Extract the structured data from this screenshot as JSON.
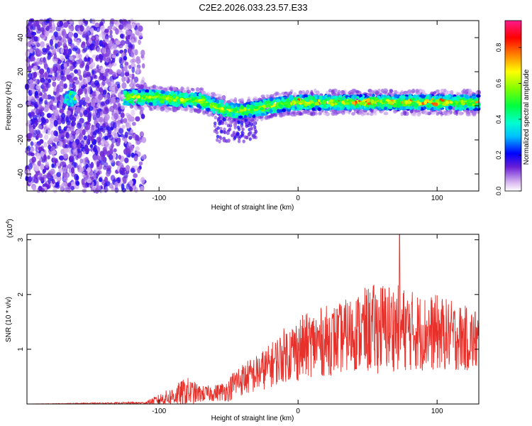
{
  "chart_data": [
    {
      "type": "heatmap",
      "title": "C2E2.2026.033.23.57.E33",
      "xlabel": "Height of straight line (km)",
      "ylabel": "Frequency (Hz)",
      "xlim": [
        -195,
        130
      ],
      "ylim": [
        -50,
        50
      ],
      "xticks": [
        -100,
        0,
        100
      ],
      "yticks": [
        -40,
        -20,
        0,
        20,
        40
      ],
      "colorbar": {
        "label": "Normalized spectral amplitude",
        "range": [
          0,
          0.95
        ],
        "ticks": [
          "0.0",
          "0.2",
          "0.4",
          "0.6",
          "0.8"
        ]
      },
      "ridge": {
        "description_points_x": [
          -165,
          -130,
          -110,
          -90,
          -70,
          -60,
          -50,
          -40,
          -30,
          -20,
          -10,
          0,
          20,
          40,
          60,
          80,
          100,
          130
        ],
        "center_frequency_hz": [
          5,
          5,
          5,
          4,
          3,
          0,
          -3,
          -3,
          -2,
          0,
          1,
          2,
          2,
          2,
          2,
          2,
          2,
          2
        ]
      }
    },
    {
      "type": "line",
      "xlabel": "Height of straight line (km)",
      "ylabel": "SNR (10 * v/v)",
      "yscale_label": "(x10",
      "yscale_exponent": "4",
      "yscale_suffix": ")",
      "xlim": [
        -195,
        130
      ],
      "ylim": [
        0,
        3.1
      ],
      "xticks": [
        -100,
        0,
        100
      ],
      "yticks": [
        1,
        2,
        3
      ],
      "color": "#e8302a",
      "envelope": {
        "x": [
          -195,
          -110,
          -100,
          -90,
          -80,
          -70,
          -60,
          -50,
          -45,
          -40,
          -30,
          -20,
          -10,
          0,
          10,
          20,
          30,
          40,
          50,
          60,
          70,
          80,
          90,
          100,
          110,
          120,
          130
        ],
        "mean": [
          0.0,
          0.02,
          0.08,
          0.14,
          0.22,
          0.18,
          0.2,
          0.25,
          0.4,
          0.45,
          0.55,
          0.7,
          0.9,
          1.0,
          1.1,
          1.15,
          1.2,
          1.3,
          1.35,
          1.4,
          1.4,
          1.35,
          1.3,
          1.3,
          1.25,
          1.2,
          1.15
        ],
        "amp": [
          0.0,
          0.02,
          0.1,
          0.18,
          0.28,
          0.15,
          0.15,
          0.2,
          0.3,
          0.3,
          0.35,
          0.4,
          0.5,
          0.6,
          0.6,
          0.65,
          0.65,
          0.7,
          0.8,
          0.85,
          0.8,
          0.75,
          0.7,
          0.7,
          0.65,
          0.6,
          0.6
        ]
      },
      "peak": {
        "x": 73,
        "y": 3.1
      }
    }
  ]
}
